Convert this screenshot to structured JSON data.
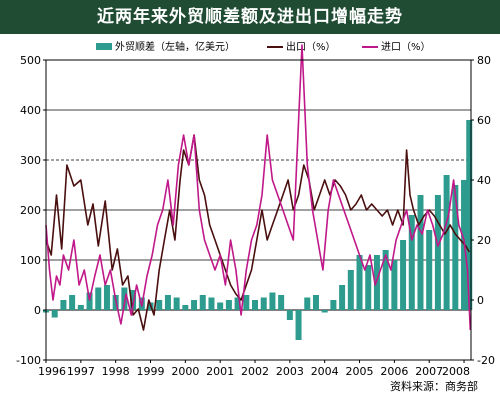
{
  "chart_data": {
    "type": "bar+line",
    "title": "近两年来外贸顺差额及进出口增幅走势",
    "source": "资料来源：商务部",
    "x_labels": [
      "1996",
      "1997",
      "1998",
      "1999",
      "2000",
      "2001",
      "2002",
      "2003",
      "2004",
      "2005",
      "2006",
      "2007",
      "2008"
    ],
    "left_axis": {
      "ylim": [
        -100,
        500
      ],
      "ticks": [
        "-100",
        "0",
        "100",
        "200",
        "300",
        "400",
        "500"
      ]
    },
    "right_axis": {
      "ylim": [
        -20,
        80
      ],
      "ticks": [
        "-20",
        "0",
        "20",
        "40",
        "60",
        "80"
      ]
    },
    "legend": [
      {
        "label": "外贸顺差（左轴，亿美元）",
        "color": "#2e9b8f",
        "kind": "bar"
      },
      {
        "label": "出口（%）",
        "color": "#4a0f0f",
        "kind": "line"
      },
      {
        "label": "进口（%）",
        "color": "#c01889",
        "kind": "line"
      }
    ],
    "series": [
      {
        "name": "外贸顺差（左轴，亿美元）",
        "axis": "left",
        "color": "#2e9b8f",
        "points": [
          [
            1996.0,
            -5
          ],
          [
            1996.25,
            -15
          ],
          [
            1996.5,
            20
          ],
          [
            1996.75,
            30
          ],
          [
            1997.0,
            10
          ],
          [
            1997.25,
            35
          ],
          [
            1997.5,
            45
          ],
          [
            1997.75,
            50
          ],
          [
            1998.0,
            30
          ],
          [
            1998.25,
            45
          ],
          [
            1998.5,
            40
          ],
          [
            1998.75,
            25
          ],
          [
            1999.0,
            15
          ],
          [
            1999.25,
            20
          ],
          [
            1999.5,
            30
          ],
          [
            1999.75,
            25
          ],
          [
            2000.0,
            10
          ],
          [
            2000.25,
            20
          ],
          [
            2000.5,
            30
          ],
          [
            2000.75,
            25
          ],
          [
            2001.0,
            15
          ],
          [
            2001.25,
            20
          ],
          [
            2001.5,
            25
          ],
          [
            2001.75,
            30
          ],
          [
            2002.0,
            20
          ],
          [
            2002.25,
            25
          ],
          [
            2002.5,
            35
          ],
          [
            2002.75,
            30
          ],
          [
            2003.0,
            -20
          ],
          [
            2003.25,
            -60
          ],
          [
            2003.5,
            25
          ],
          [
            2003.75,
            30
          ],
          [
            2004.0,
            -5
          ],
          [
            2004.25,
            20
          ],
          [
            2004.5,
            50
          ],
          [
            2004.75,
            80
          ],
          [
            2005.0,
            110
          ],
          [
            2005.25,
            90
          ],
          [
            2005.5,
            110
          ],
          [
            2005.75,
            120
          ],
          [
            2006.0,
            100
          ],
          [
            2006.25,
            140
          ],
          [
            2006.5,
            190
          ],
          [
            2006.75,
            230
          ],
          [
            2007.0,
            160
          ],
          [
            2007.25,
            230
          ],
          [
            2007.5,
            270
          ],
          [
            2007.75,
            250
          ],
          [
            2008.0,
            260
          ],
          [
            2008.15,
            380
          ]
        ]
      },
      {
        "name": "出口（%）",
        "axis": "right",
        "color": "#4a0f0f",
        "points": [
          [
            1996.0,
            20
          ],
          [
            1996.15,
            15
          ],
          [
            1996.3,
            35
          ],
          [
            1996.45,
            17
          ],
          [
            1996.6,
            45
          ],
          [
            1996.8,
            38
          ],
          [
            1997.0,
            40
          ],
          [
            1997.2,
            25
          ],
          [
            1997.35,
            32
          ],
          [
            1997.5,
            18
          ],
          [
            1997.7,
            33
          ],
          [
            1997.9,
            10
          ],
          [
            1998.05,
            17
          ],
          [
            1998.2,
            5
          ],
          [
            1998.35,
            8
          ],
          [
            1998.5,
            -5
          ],
          [
            1998.65,
            -3
          ],
          [
            1998.8,
            -10
          ],
          [
            1998.95,
            0
          ],
          [
            1999.1,
            -5
          ],
          [
            1999.25,
            10
          ],
          [
            1999.4,
            20
          ],
          [
            1999.55,
            30
          ],
          [
            1999.7,
            20
          ],
          [
            1999.85,
            40
          ],
          [
            1999.95,
            50
          ],
          [
            2000.1,
            45
          ],
          [
            2000.25,
            55
          ],
          [
            2000.4,
            40
          ],
          [
            2000.55,
            35
          ],
          [
            2000.7,
            25
          ],
          [
            2000.85,
            20
          ],
          [
            2001.0,
            15
          ],
          [
            2001.15,
            10
          ],
          [
            2001.3,
            5
          ],
          [
            2001.45,
            2
          ],
          [
            2001.6,
            0
          ],
          [
            2001.75,
            5
          ],
          [
            2001.9,
            10
          ],
          [
            2002.05,
            20
          ],
          [
            2002.2,
            30
          ],
          [
            2002.35,
            20
          ],
          [
            2002.5,
            25
          ],
          [
            2002.65,
            30
          ],
          [
            2002.8,
            35
          ],
          [
            2002.95,
            40
          ],
          [
            2003.1,
            30
          ],
          [
            2003.25,
            35
          ],
          [
            2003.4,
            45
          ],
          [
            2003.55,
            40
          ],
          [
            2003.7,
            30
          ],
          [
            2003.85,
            35
          ],
          [
            2004.0,
            40
          ],
          [
            2004.15,
            35
          ],
          [
            2004.3,
            40
          ],
          [
            2004.45,
            38
          ],
          [
            2004.6,
            35
          ],
          [
            2004.75,
            30
          ],
          [
            2004.9,
            32
          ],
          [
            2005.05,
            35
          ],
          [
            2005.2,
            30
          ],
          [
            2005.35,
            32
          ],
          [
            2005.5,
            30
          ],
          [
            2005.65,
            28
          ],
          [
            2005.8,
            30
          ],
          [
            2005.95,
            25
          ],
          [
            2006.1,
            30
          ],
          [
            2006.25,
            25
          ],
          [
            2006.35,
            50
          ],
          [
            2006.45,
            35
          ],
          [
            2006.55,
            30
          ],
          [
            2006.7,
            25
          ],
          [
            2006.85,
            28
          ],
          [
            2007.0,
            30
          ],
          [
            2007.15,
            28
          ],
          [
            2007.3,
            25
          ],
          [
            2007.45,
            22
          ],
          [
            2007.6,
            25
          ],
          [
            2007.75,
            22
          ],
          [
            2007.9,
            20
          ],
          [
            2008.05,
            18
          ],
          [
            2008.15,
            16
          ]
        ]
      },
      {
        "name": "进口（%）",
        "axis": "right",
        "color": "#c01889",
        "points": [
          [
            1996.0,
            25
          ],
          [
            1996.1,
            10
          ],
          [
            1996.2,
            0
          ],
          [
            1996.3,
            8
          ],
          [
            1996.4,
            5
          ],
          [
            1996.5,
            15
          ],
          [
            1996.65,
            10
          ],
          [
            1996.8,
            20
          ],
          [
            1996.95,
            5
          ],
          [
            1997.1,
            10
          ],
          [
            1997.25,
            0
          ],
          [
            1997.4,
            8
          ],
          [
            1997.55,
            15
          ],
          [
            1997.7,
            5
          ],
          [
            1997.85,
            10
          ],
          [
            1998.0,
            0
          ],
          [
            1998.15,
            -8
          ],
          [
            1998.3,
            2
          ],
          [
            1998.45,
            -5
          ],
          [
            1998.6,
            5
          ],
          [
            1998.75,
            -2
          ],
          [
            1998.9,
            8
          ],
          [
            1999.05,
            15
          ],
          [
            1999.2,
            25
          ],
          [
            1999.35,
            30
          ],
          [
            1999.5,
            40
          ],
          [
            1999.65,
            25
          ],
          [
            1999.8,
            45
          ],
          [
            1999.95,
            55
          ],
          [
            2000.1,
            45
          ],
          [
            2000.25,
            55
          ],
          [
            2000.4,
            30
          ],
          [
            2000.55,
            20
          ],
          [
            2000.7,
            15
          ],
          [
            2000.85,
            10
          ],
          [
            2001.0,
            15
          ],
          [
            2001.15,
            5
          ],
          [
            2001.3,
            20
          ],
          [
            2001.45,
            10
          ],
          [
            2001.6,
            -5
          ],
          [
            2001.75,
            10
          ],
          [
            2001.9,
            20
          ],
          [
            2002.05,
            25
          ],
          [
            2002.2,
            35
          ],
          [
            2002.35,
            55
          ],
          [
            2002.5,
            40
          ],
          [
            2002.65,
            35
          ],
          [
            2002.8,
            30
          ],
          [
            2002.95,
            25
          ],
          [
            2003.1,
            20
          ],
          [
            2003.25,
            60
          ],
          [
            2003.35,
            85
          ],
          [
            2003.5,
            45
          ],
          [
            2003.65,
            30
          ],
          [
            2003.8,
            20
          ],
          [
            2003.95,
            10
          ],
          [
            2004.1,
            30
          ],
          [
            2004.25,
            40
          ],
          [
            2004.4,
            35
          ],
          [
            2004.55,
            30
          ],
          [
            2004.7,
            25
          ],
          [
            2004.85,
            20
          ],
          [
            2005.0,
            15
          ],
          [
            2005.15,
            10
          ],
          [
            2005.3,
            15
          ],
          [
            2005.45,
            5
          ],
          [
            2005.6,
            10
          ],
          [
            2005.75,
            15
          ],
          [
            2005.9,
            10
          ],
          [
            2006.05,
            20
          ],
          [
            2006.2,
            25
          ],
          [
            2006.35,
            30
          ],
          [
            2006.5,
            20
          ],
          [
            2006.65,
            25
          ],
          [
            2006.8,
            22
          ],
          [
            2006.95,
            30
          ],
          [
            2007.1,
            25
          ],
          [
            2007.25,
            18
          ],
          [
            2007.4,
            22
          ],
          [
            2007.55,
            28
          ],
          [
            2007.7,
            40
          ],
          [
            2007.85,
            25
          ],
          [
            2008.0,
            20
          ],
          [
            2008.1,
            10
          ],
          [
            2008.18,
            -10
          ]
        ]
      }
    ]
  }
}
